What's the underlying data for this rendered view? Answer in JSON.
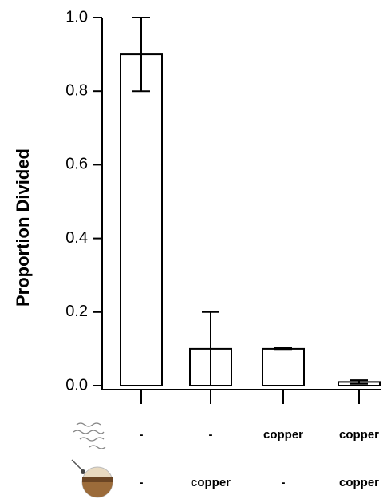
{
  "chart_data": {
    "type": "bar",
    "y_label": "Proportion Divided",
    "categories": [
      null,
      null,
      null,
      null
    ],
    "values": [
      0.9,
      0.1,
      0.1,
      0.01
    ],
    "errors": [
      0.1,
      0.1,
      0.003,
      0.005
    ],
    "color": "#ffffff",
    "ylim": [
      0,
      1
    ],
    "yticks": [
      {
        "value": 0,
        "label": "0.0"
      },
      0.2,
      0.4,
      0.6,
      0.8,
      {
        "value": 1,
        "label": "1.0"
      }
    ],
    "condition_rows": [
      [
        "-",
        "-",
        "copper",
        "copper"
      ],
      [
        "-",
        "copper",
        "-",
        "copper"
      ]
    ]
  }
}
